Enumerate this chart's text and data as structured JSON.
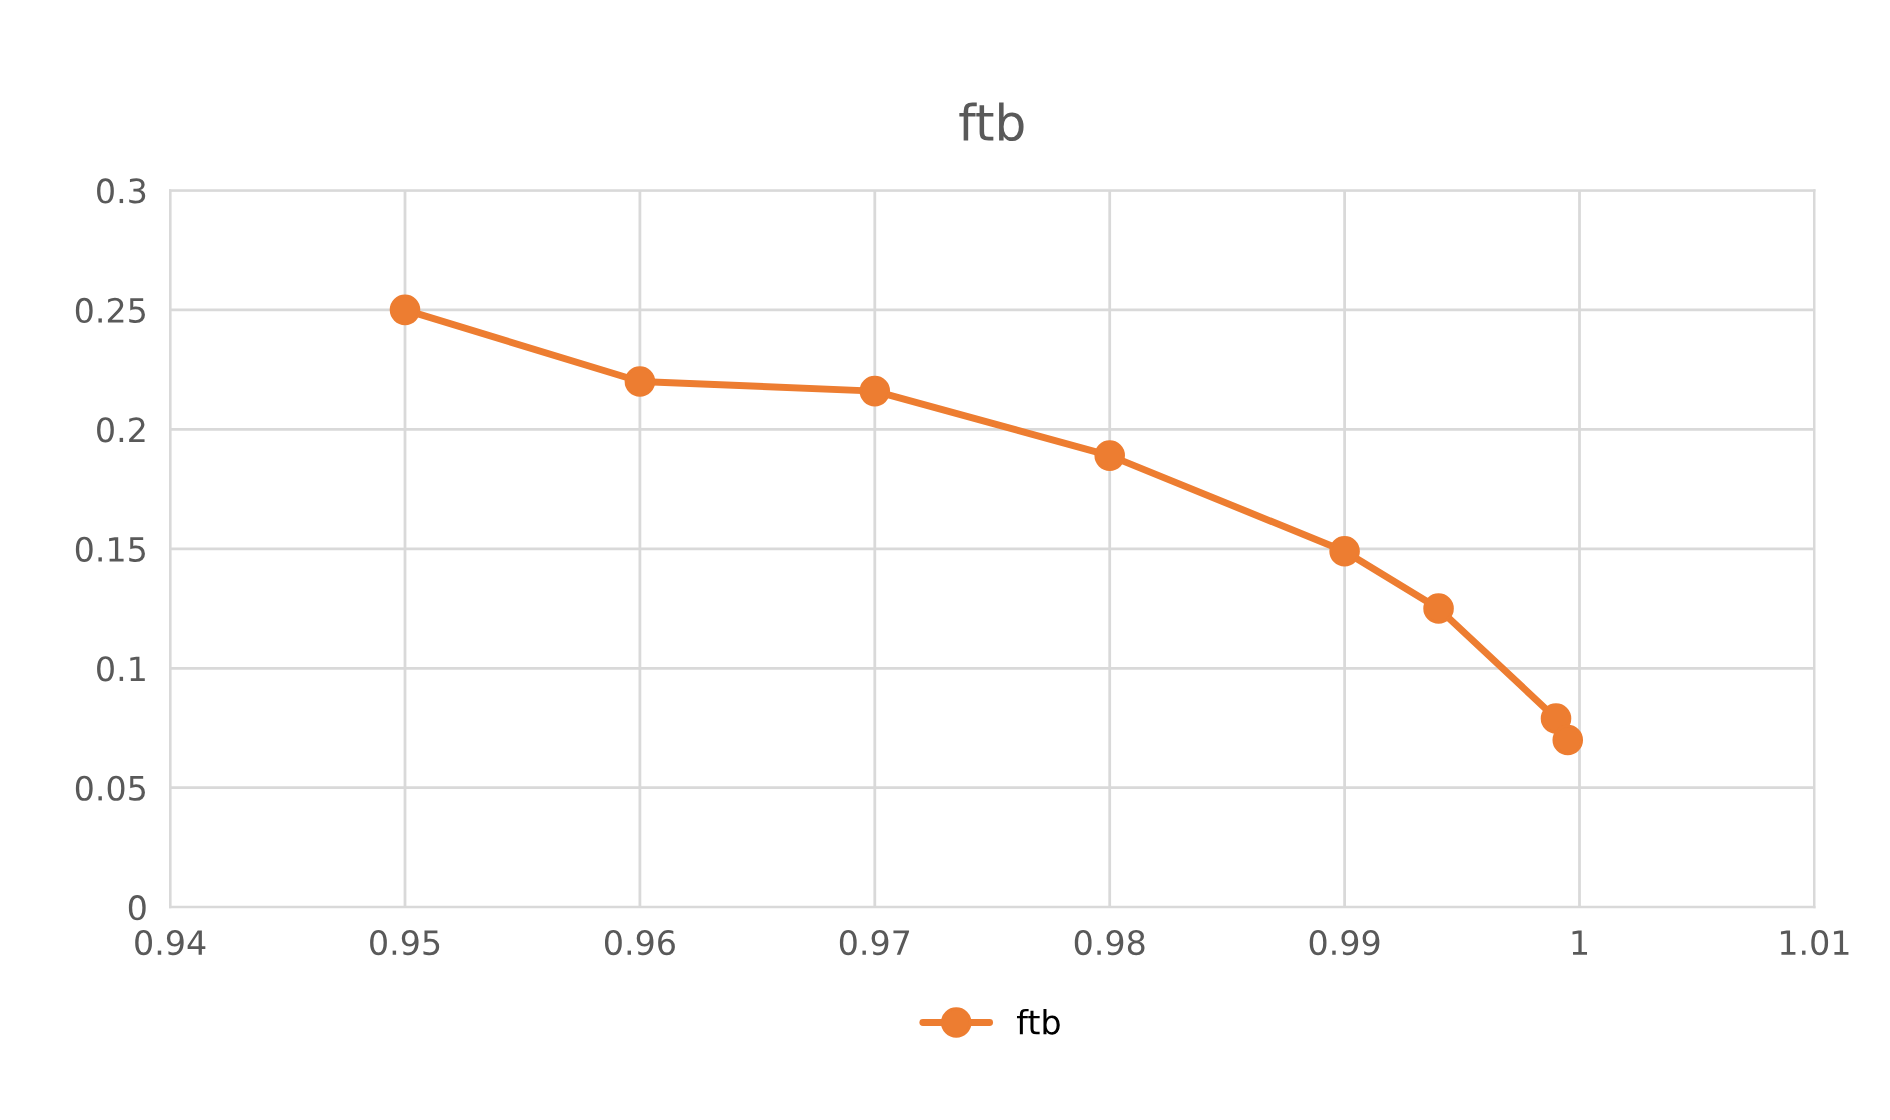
{
  "chart_data": {
    "type": "line",
    "title": "ftb",
    "series": [
      {
        "name": "ftb",
        "color": "#ed7d31",
        "x": [
          0.95,
          0.96,
          0.97,
          0.98,
          0.99,
          0.994,
          0.999,
          0.9995
        ],
        "values": [
          0.25,
          0.22,
          0.216,
          0.189,
          0.149,
          0.125,
          0.079,
          0.07
        ]
      }
    ],
    "xlim": [
      0.94,
      1.01
    ],
    "xticks": [
      0.94,
      0.95,
      0.96,
      0.97,
      0.98,
      0.99,
      1,
      1.01
    ],
    "ylim": [
      0,
      0.3
    ],
    "yticks": [
      0,
      0.05,
      0.1,
      0.15,
      0.2,
      0.25,
      0.3
    ],
    "grid": true,
    "legend": "bottom",
    "marker": "circle",
    "line_style": "solid"
  }
}
